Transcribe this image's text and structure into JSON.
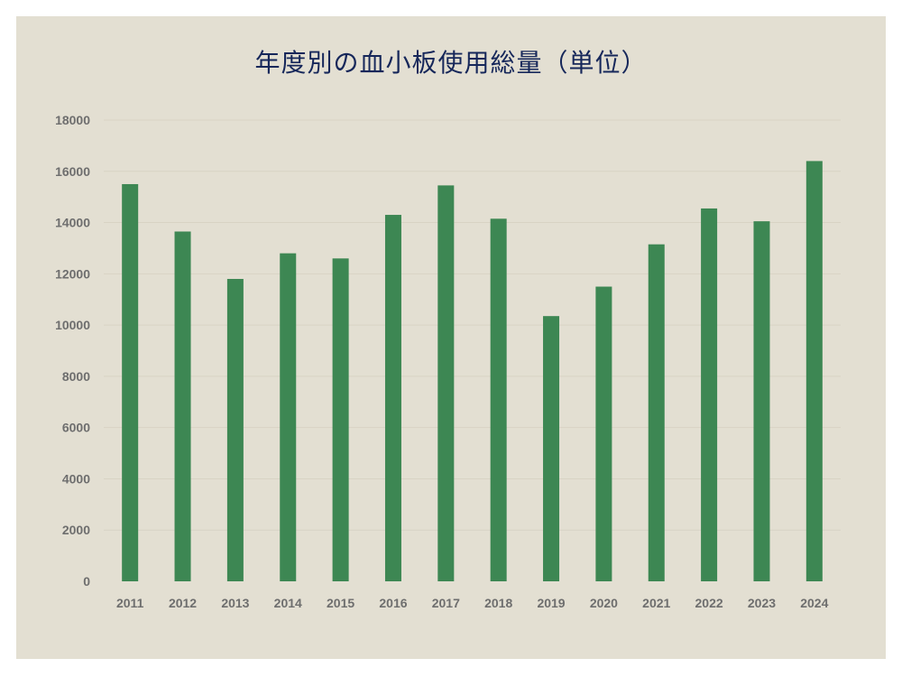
{
  "chart_data": {
    "type": "bar",
    "title": "年度別の血小板使用総量（単位）",
    "xlabel": "",
    "ylabel": "",
    "categories": [
      "2011",
      "2012",
      "2013",
      "2014",
      "2015",
      "2016",
      "2017",
      "2018",
      "2019",
      "2020",
      "2021",
      "2022",
      "2023",
      "2024"
    ],
    "values": [
      15500,
      13650,
      11800,
      12800,
      12600,
      14300,
      15450,
      14150,
      10350,
      11500,
      13150,
      14550,
      14050,
      16400
    ],
    "ylim": [
      0,
      18000
    ],
    "yticks": [
      0,
      2000,
      4000,
      6000,
      8000,
      10000,
      12000,
      14000,
      16000,
      18000
    ],
    "grid": true,
    "colors": {
      "bar": "#3d8753",
      "background": "#e3dfd2",
      "title": "#16275a",
      "tick": "#6e6e6e",
      "grid": "#d8d3c4"
    }
  }
}
